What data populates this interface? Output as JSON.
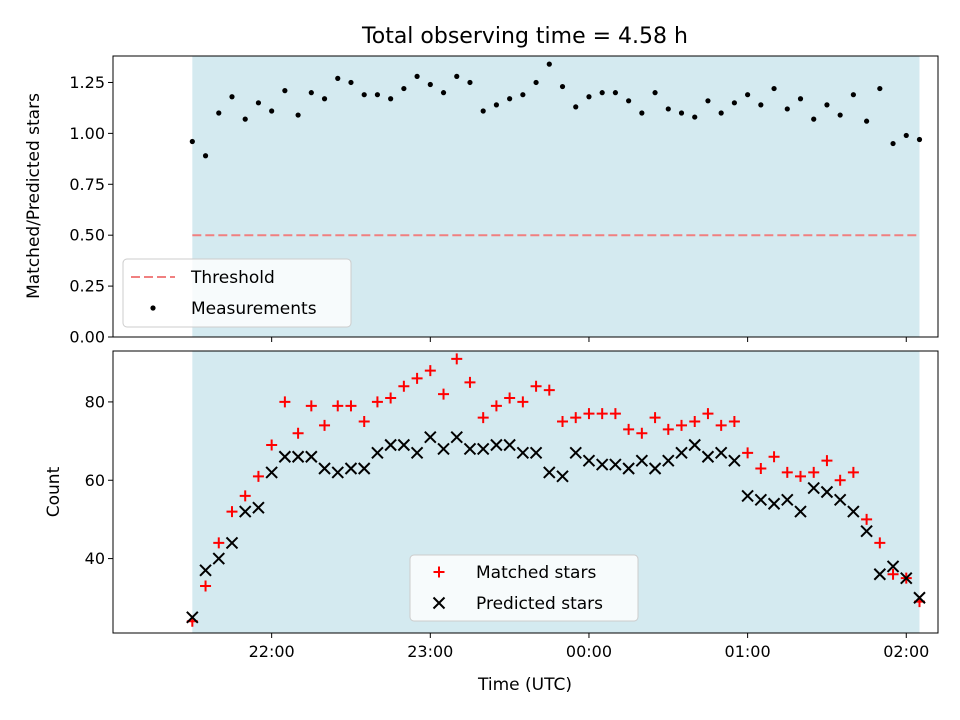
{
  "chart_data": [
    {
      "type": "scatter",
      "title": "Total observing time = 4.58 h",
      "xlabel": "",
      "ylabel": "Matched/Predicted stars",
      "ylim": [
        0,
        1.38
      ],
      "yticks": [
        "0.00",
        "0.25",
        "0.50",
        "0.75",
        "1.00",
        "1.25"
      ],
      "observing_window": {
        "start": "21:30",
        "end": "02:05",
        "color": "#d4eaf0"
      },
      "threshold": {
        "name": "Threshold",
        "value": 0.5,
        "color": "#f08080"
      },
      "series": [
        {
          "name": "Measurements",
          "color": "#000000",
          "x": [
            "21:30",
            "21:35",
            "21:40",
            "21:45",
            "21:50",
            "21:55",
            "22:00",
            "22:05",
            "22:10",
            "22:15",
            "22:20",
            "22:25",
            "22:30",
            "22:35",
            "22:40",
            "22:45",
            "22:50",
            "22:55",
            "23:00",
            "23:05",
            "23:10",
            "23:15",
            "23:20",
            "23:25",
            "23:30",
            "23:35",
            "23:40",
            "23:45",
            "23:50",
            "23:55",
            "00:00",
            "00:05",
            "00:10",
            "00:15",
            "00:20",
            "00:25",
            "00:30",
            "00:35",
            "00:40",
            "00:45",
            "00:50",
            "00:55",
            "01:00",
            "01:05",
            "01:10",
            "01:15",
            "01:20",
            "01:25",
            "01:30",
            "01:35",
            "01:40",
            "01:45",
            "01:50",
            "01:55",
            "02:00",
            "02:05"
          ],
          "y": [
            0.96,
            0.89,
            1.1,
            1.18,
            1.07,
            1.15,
            1.11,
            1.21,
            1.09,
            1.2,
            1.17,
            1.27,
            1.25,
            1.19,
            1.19,
            1.17,
            1.22,
            1.28,
            1.24,
            1.2,
            1.28,
            1.25,
            1.11,
            1.14,
            1.17,
            1.19,
            1.25,
            1.34,
            1.23,
            1.13,
            1.18,
            1.2,
            1.2,
            1.16,
            1.1,
            1.2,
            1.12,
            1.1,
            1.08,
            1.16,
            1.1,
            1.15,
            1.19,
            1.14,
            1.22,
            1.12,
            1.17,
            1.07,
            1.14,
            1.09,
            1.19,
            1.06,
            1.22,
            0.95,
            0.99,
            0.97
          ]
        }
      ],
      "legend": {
        "position": "lower left",
        "entries": [
          "Threshold",
          "Measurements"
        ]
      }
    },
    {
      "type": "scatter",
      "title": "",
      "xlabel": "Time (UTC)",
      "ylabel": "Count",
      "ylim": [
        21,
        93
      ],
      "yticks": [
        "40",
        "60",
        "80"
      ],
      "xticks": [
        "22:00",
        "23:00",
        "00:00",
        "01:00",
        "02:00"
      ],
      "xlim": [
        "21:00",
        "02:12"
      ],
      "observing_window": {
        "start": "21:30",
        "end": "02:05",
        "color": "#d4eaf0"
      },
      "series": [
        {
          "name": "Matched stars",
          "marker": "+",
          "color": "#ff0000",
          "x": [
            "21:30",
            "21:35",
            "21:40",
            "21:45",
            "21:50",
            "21:55",
            "22:00",
            "22:05",
            "22:10",
            "22:15",
            "22:20",
            "22:25",
            "22:30",
            "22:35",
            "22:40",
            "22:45",
            "22:50",
            "22:55",
            "23:00",
            "23:05",
            "23:10",
            "23:15",
            "23:20",
            "23:25",
            "23:30",
            "23:35",
            "23:40",
            "23:45",
            "23:50",
            "23:55",
            "00:00",
            "00:05",
            "00:10",
            "00:15",
            "00:20",
            "00:25",
            "00:30",
            "00:35",
            "00:40",
            "00:45",
            "00:50",
            "00:55",
            "01:00",
            "01:05",
            "01:10",
            "01:15",
            "01:20",
            "01:25",
            "01:30",
            "01:35",
            "01:40",
            "01:45",
            "01:50",
            "01:55",
            "02:00",
            "02:05"
          ],
          "y": [
            24,
            33,
            44,
            52,
            56,
            61,
            69,
            80,
            72,
            79,
            74,
            79,
            79,
            75,
            80,
            81,
            84,
            86,
            88,
            82,
            91,
            85,
            76,
            79,
            81,
            80,
            84,
            83,
            75,
            76,
            77,
            77,
            77,
            73,
            72,
            76,
            73,
            74,
            75,
            77,
            74,
            75,
            67,
            63,
            66,
            62,
            61,
            62,
            65,
            60,
            62,
            50,
            44,
            36,
            35,
            29
          ]
        },
        {
          "name": "Predicted stars",
          "marker": "x",
          "color": "#000000",
          "x": [
            "21:30",
            "21:35",
            "21:40",
            "21:45",
            "21:50",
            "21:55",
            "22:00",
            "22:05",
            "22:10",
            "22:15",
            "22:20",
            "22:25",
            "22:30",
            "22:35",
            "22:40",
            "22:45",
            "22:50",
            "22:55",
            "23:00",
            "23:05",
            "23:10",
            "23:15",
            "23:20",
            "23:25",
            "23:30",
            "23:35",
            "23:40",
            "23:45",
            "23:50",
            "23:55",
            "00:00",
            "00:05",
            "00:10",
            "00:15",
            "00:20",
            "00:25",
            "00:30",
            "00:35",
            "00:40",
            "00:45",
            "00:50",
            "00:55",
            "01:00",
            "01:05",
            "01:10",
            "01:15",
            "01:20",
            "01:25",
            "01:30",
            "01:35",
            "01:40",
            "01:45",
            "01:50",
            "01:55",
            "02:00",
            "02:05"
          ],
          "y": [
            25,
            37,
            40,
            44,
            52,
            53,
            62,
            66,
            66,
            66,
            63,
            62,
            63,
            63,
            67,
            69,
            69,
            67,
            71,
            68,
            71,
            68,
            68,
            69,
            69,
            67,
            67,
            62,
            61,
            67,
            65,
            64,
            64,
            63,
            65,
            63,
            65,
            67,
            69,
            66,
            67,
            65,
            56,
            55,
            54,
            55,
            52,
            58,
            57,
            55,
            52,
            47,
            36,
            38,
            35,
            30
          ]
        }
      ],
      "legend": {
        "position": "lower center",
        "entries": [
          "Matched stars",
          "Predicted stars"
        ]
      }
    }
  ]
}
